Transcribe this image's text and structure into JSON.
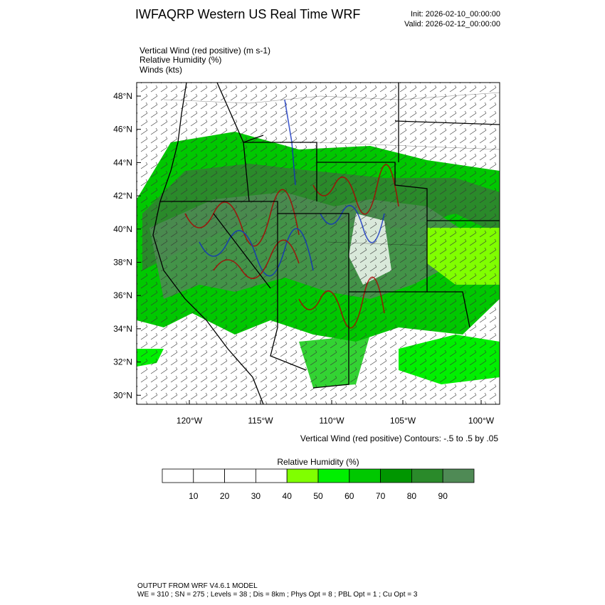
{
  "header": {
    "title": "IWFAQRP Western US Real Time WRF",
    "init": "Init: 2026-02-10_00:00:00",
    "valid": "Valid: 2026-02-12_00:00:00"
  },
  "fields": [
    "Vertical Wind (red positive)   (m s-1)",
    "Relative Humidity   (%)",
    "Winds   (kts)"
  ],
  "map": {
    "lat_labels": [
      "48°N",
      "46°N",
      "44°N",
      "42°N",
      "40°N",
      "38°N",
      "36°N",
      "34°N",
      "32°N",
      "30°N"
    ],
    "lon_labels": [
      "120°W",
      "115°W",
      "110°W",
      "105°W",
      "100°W"
    ],
    "contour_note": "Vertical Wind (red positive) Contours: -.5 to .5 by .05"
  },
  "colorbar": {
    "title": "Relative Humidity  (%)",
    "labels": [
      "10",
      "20",
      "30",
      "40",
      "50",
      "60",
      "70",
      "80",
      "90"
    ],
    "colors": [
      "#ffffff",
      "#ffffff",
      "#ffffff",
      "#ffffff",
      "#80ff00",
      "#00f000",
      "#00c800",
      "#009600",
      "#2a8a2a",
      "#4f8a55"
    ]
  },
  "footer": {
    "model": "OUTPUT FROM WRF V4.6.1 MODEL",
    "config": "WE = 310 ; SN = 275 ; Levels = 38 ; Dis = 8km ; Phys Opt = 8 ; PBL Opt = 1 ; Cu Opt = 3"
  }
}
